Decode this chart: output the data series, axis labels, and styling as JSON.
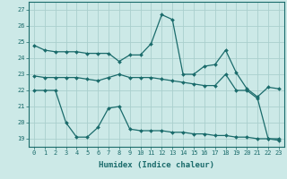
{
  "title": "",
  "xlabel": "Humidex (Indice chaleur)",
  "ylabel": "",
  "xlim": [
    -0.5,
    23.5
  ],
  "ylim": [
    18.5,
    27.5
  ],
  "yticks": [
    19,
    20,
    21,
    22,
    23,
    24,
    25,
    26,
    27
  ],
  "xticks": [
    0,
    1,
    2,
    3,
    4,
    5,
    6,
    7,
    8,
    9,
    10,
    11,
    12,
    13,
    14,
    15,
    16,
    17,
    18,
    19,
    20,
    21,
    22,
    23
  ],
  "bg_color": "#cce9e7",
  "grid_color": "#aacfcd",
  "line_color": "#1a6b6b",
  "line1": [
    24.8,
    24.5,
    24.4,
    24.4,
    24.4,
    24.3,
    24.3,
    24.3,
    23.8,
    24.2,
    24.2,
    24.9,
    26.7,
    26.4,
    23.0,
    23.0,
    23.5,
    23.6,
    24.5,
    23.1,
    22.1,
    21.6,
    22.2,
    22.1
  ],
  "line2": [
    22.9,
    22.8,
    22.8,
    22.8,
    22.8,
    22.7,
    22.6,
    22.8,
    23.0,
    22.8,
    22.8,
    22.8,
    22.7,
    22.6,
    22.5,
    22.4,
    22.3,
    22.3,
    23.0,
    22.0,
    22.0,
    21.5,
    19.0,
    19.0
  ],
  "line3": [
    22.0,
    22.0,
    22.0,
    20.0,
    19.1,
    19.1,
    19.7,
    20.9,
    21.0,
    19.6,
    19.5,
    19.5,
    19.5,
    19.4,
    19.4,
    19.3,
    19.3,
    19.2,
    19.2,
    19.1,
    19.1,
    19.0,
    19.0,
    18.9
  ],
  "xlabel_fontsize": 6.5,
  "tick_fontsize": 5.0
}
